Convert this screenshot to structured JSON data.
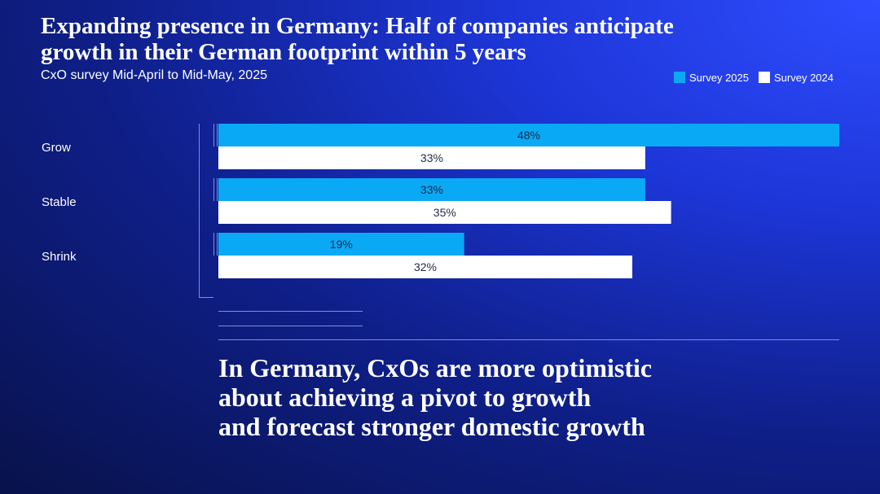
{
  "title": "Expanding presence in Germany: Half of companies anticipate\ngrowth in their German footprint within 5 years",
  "subtitle": "CxO survey Mid-April to Mid-May, 2025",
  "legend": [
    {
      "label": "Survey 2025",
      "color": "#0aa9f5"
    },
    {
      "label": "Survey 2024",
      "color": "#ffffff"
    }
  ],
  "chart_data": {
    "type": "bar",
    "orientation": "horizontal",
    "categories": [
      "Grow",
      "Stable",
      "Shrink"
    ],
    "series": [
      {
        "name": "Survey 2025",
        "values": [
          48,
          33,
          19
        ],
        "labels": [
          "48%",
          "33%",
          "19%"
        ],
        "color": "#0aa9f5"
      },
      {
        "name": "Survey 2024",
        "values": [
          33,
          35,
          32
        ],
        "labels": [
          "33%",
          "35%",
          "32%"
        ],
        "color": "#ffffff"
      }
    ],
    "xlim": [
      0,
      48
    ],
    "legend_position": "top-right"
  },
  "takeaway": "In Germany, CxOs are more optimistic\nabout achieving a pivot to growth\nand forecast stronger domestic growth"
}
